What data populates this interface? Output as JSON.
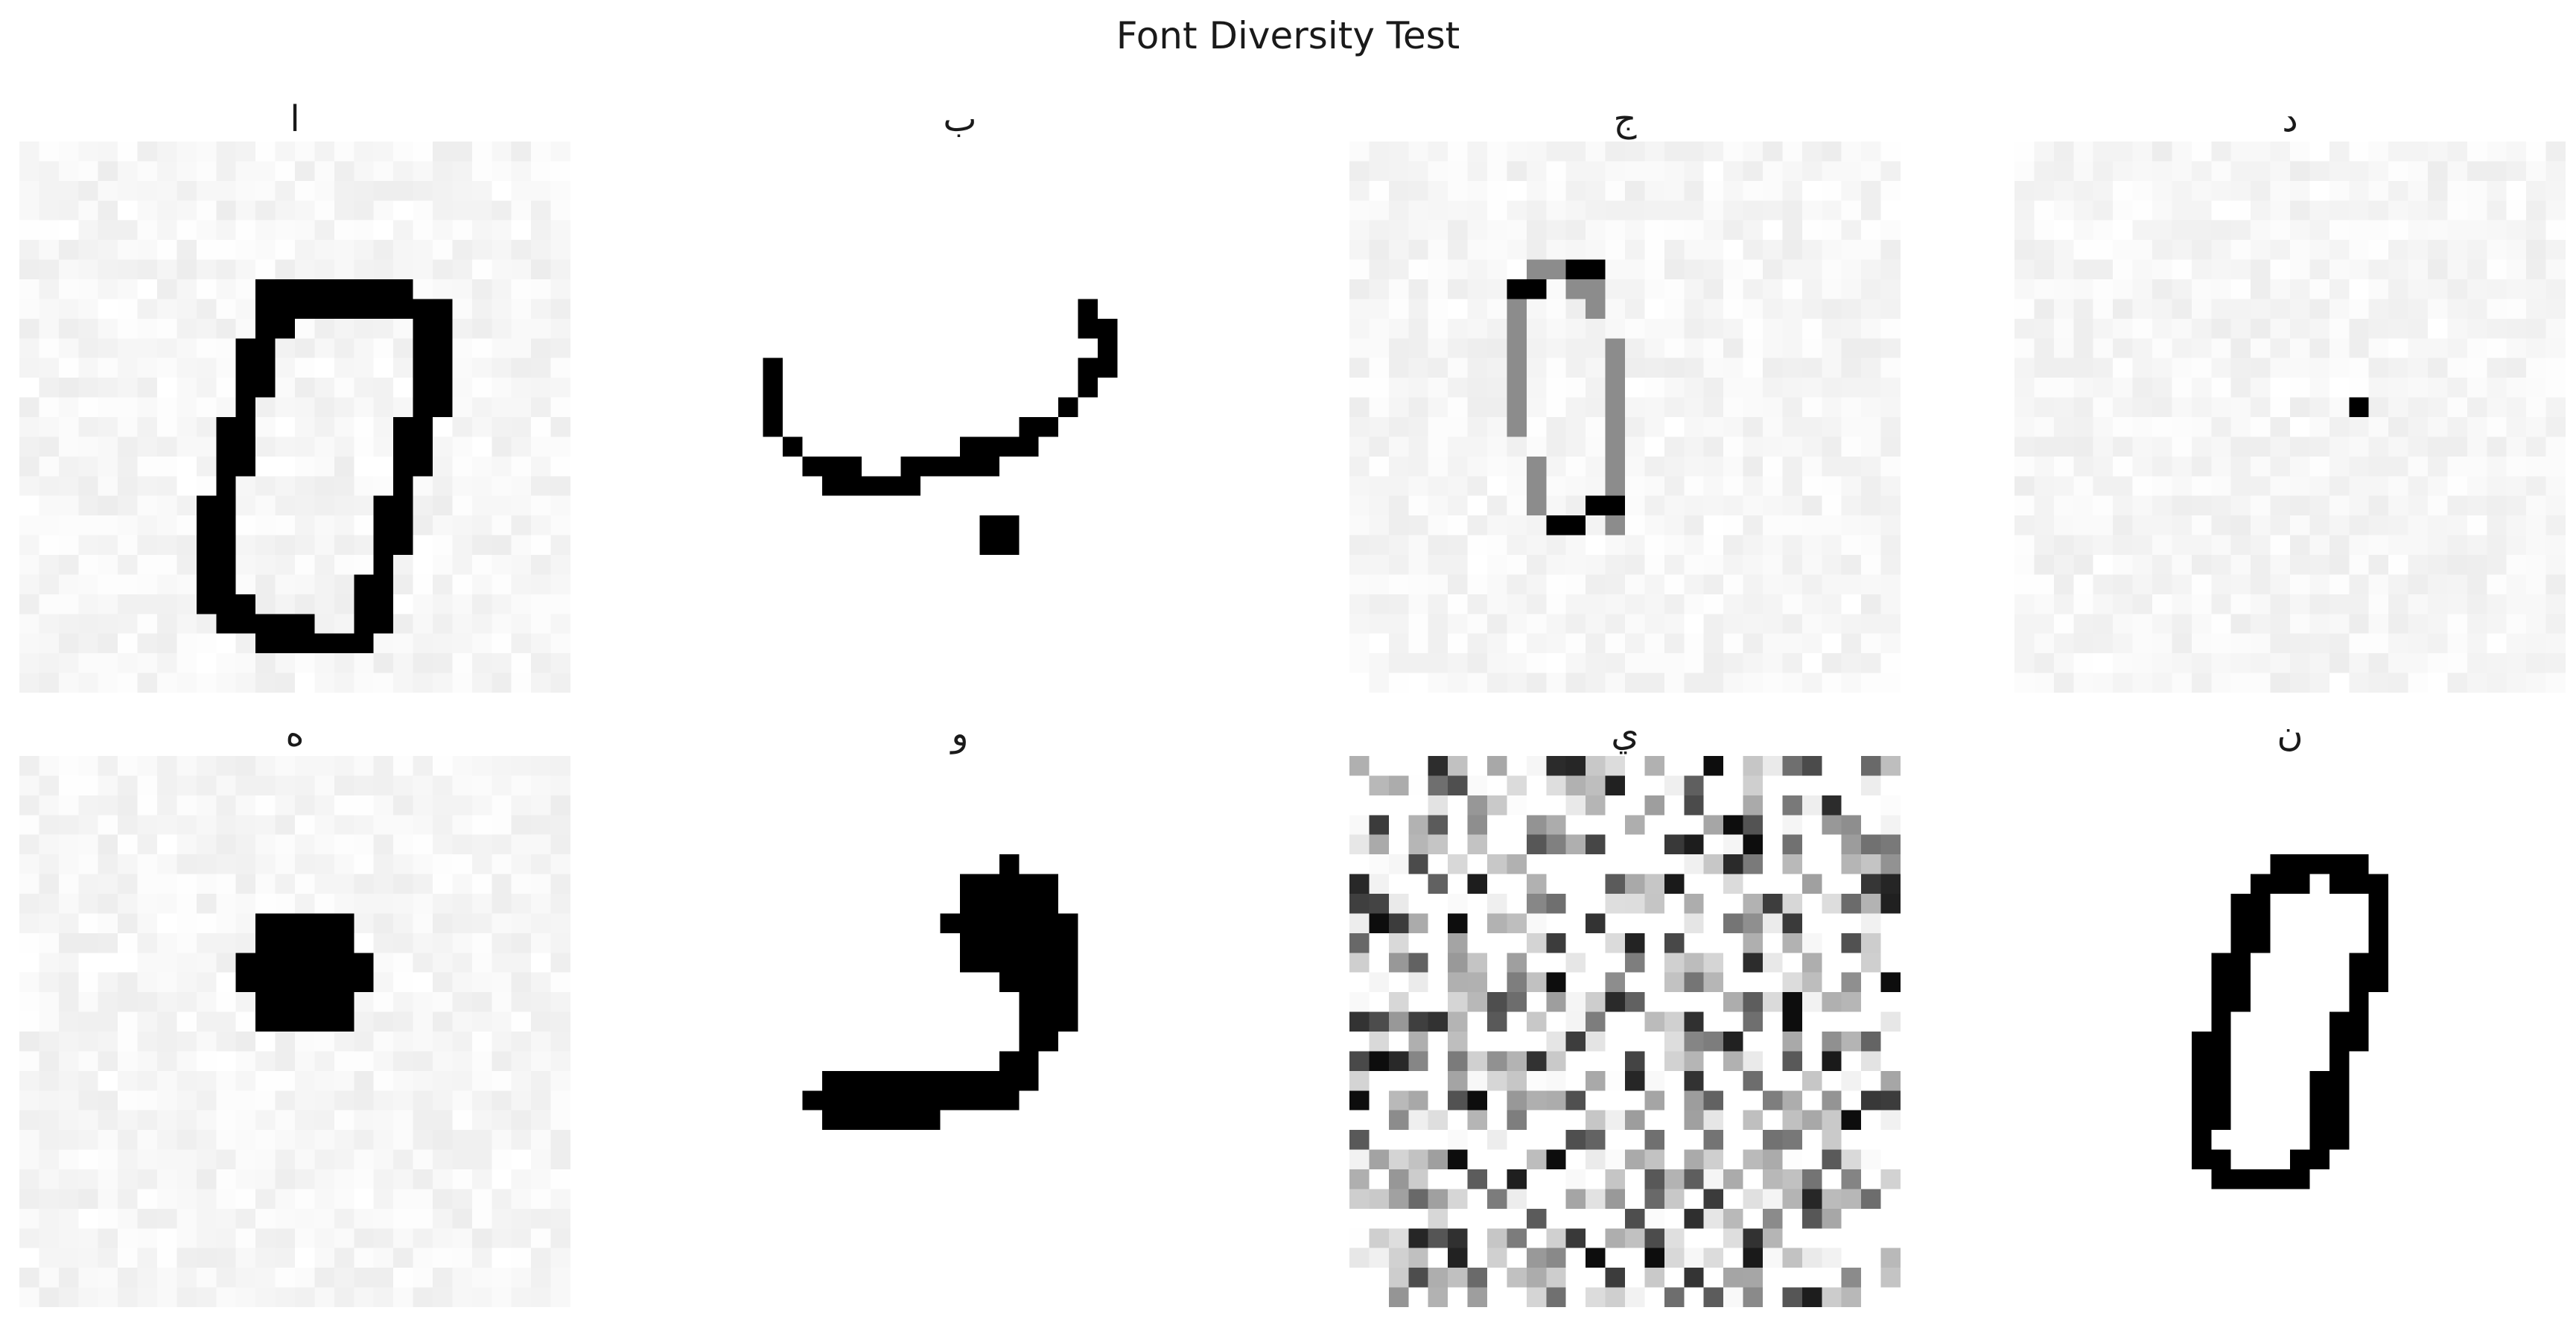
{
  "title": "Font Diversity Test",
  "chart_data": {
    "type": "image-grid",
    "title": "Font Diversity Test",
    "rows": 2,
    "cols": 4,
    "colormap": "gray_r",
    "image_resolution": [
      28,
      28
    ],
    "panels": [
      {
        "label": "ا",
        "glyph": "0",
        "noise": "light"
      },
      {
        "label": "ب",
        "glyph": "ب",
        "noise": "none"
      },
      {
        "label": "ج",
        "glyph": "0",
        "noise": "light",
        "stroke": "thin-gray"
      },
      {
        "label": "د",
        "glyph": ".",
        "noise": "light"
      },
      {
        "label": "ه",
        "glyph": "•",
        "noise": "light"
      },
      {
        "label": "و",
        "glyph": "و",
        "noise": "none"
      },
      {
        "label": "ي",
        "glyph": "",
        "noise": "heavy"
      },
      {
        "label": "ن",
        "glyph": "0",
        "noise": "none"
      }
    ]
  }
}
